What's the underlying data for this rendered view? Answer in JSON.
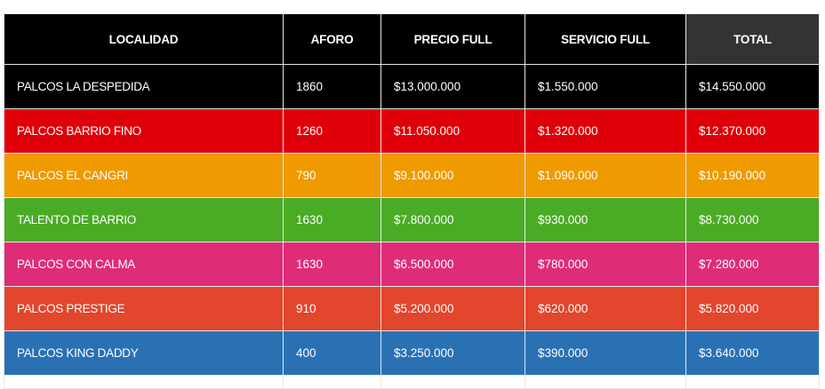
{
  "table": {
    "headers": [
      "LOCALIDAD",
      "AFORO",
      "PRECIO FULL",
      "SERVICIO FULL",
      "TOTAL"
    ],
    "header_colors": [
      "#000000",
      "#000000",
      "#000000",
      "#000000",
      "#333333"
    ],
    "rows": [
      {
        "color": "#000000",
        "cells": [
          "PALCOS LA DESPEDIDA",
          "1860",
          "$13.000.000",
          "$1.550.000",
          "$14.550.000"
        ]
      },
      {
        "color": "#e00009",
        "cells": [
          "PALCOS BARRIO FINO",
          "1260",
          "$11.050.000",
          "$1.320.000",
          "$12.370.000"
        ]
      },
      {
        "color": "#ef9a00",
        "cells": [
          "PALCOS EL CANGRI",
          "790",
          "$9.100.000",
          "$1.090.000",
          "$10.190.000"
        ]
      },
      {
        "color": "#4aab25",
        "cells": [
          "TALENTO DE BARRIO",
          "1630",
          "$7.800.000",
          "$930.000",
          "$8.730.000"
        ]
      },
      {
        "color": "#de2c78",
        "cells": [
          "PALCOS CON CALMA",
          "1630",
          "$6.500.000",
          "$780.000",
          "$7.280.000"
        ]
      },
      {
        "color": "#e2462c",
        "cells": [
          "PALCOS PRESTIGE",
          "910",
          "$5.200.000",
          "$620.000",
          "$5.820.000"
        ]
      },
      {
        "color": "#2a71b4",
        "cells": [
          "PALCOS KING DADDY",
          "400",
          "$3.250.000",
          "$390.000",
          "$3.640.000"
        ]
      }
    ]
  }
}
